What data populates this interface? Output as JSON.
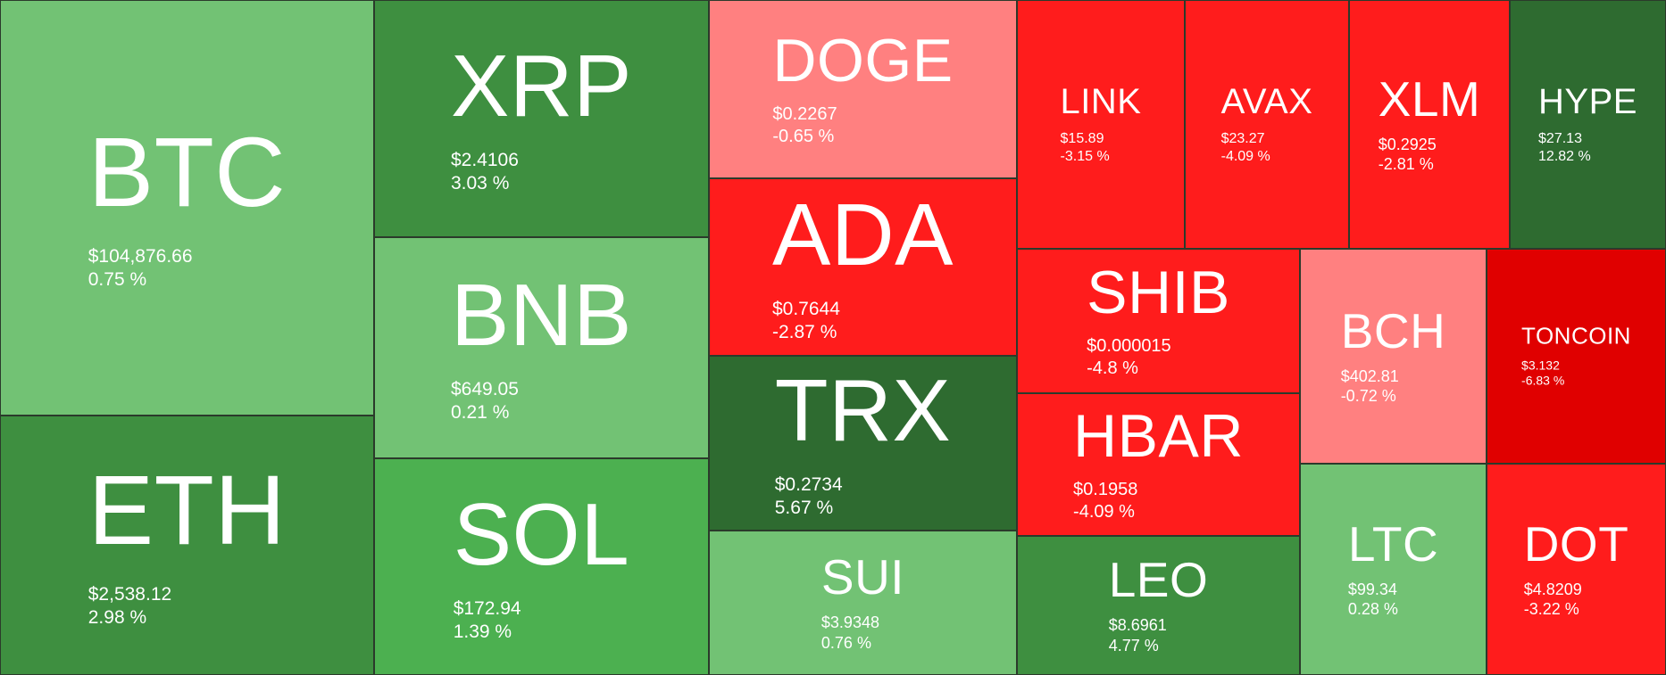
{
  "heatmap": {
    "tiles": [
      {
        "symbol": "BTC",
        "price": "$104,876.66",
        "change": "0.75 %",
        "color": "#72c274"
      },
      {
        "symbol": "ETH",
        "price": "$2,538.12",
        "change": "2.98 %",
        "color": "#3e8f40"
      },
      {
        "symbol": "XRP",
        "price": "$2.4106",
        "change": "3.03 %",
        "color": "#3e8f40"
      },
      {
        "symbol": "BNB",
        "price": "$649.05",
        "change": "0.21 %",
        "color": "#72c274"
      },
      {
        "symbol": "SOL",
        "price": "$172.94",
        "change": "1.39 %",
        "color": "#4cb050"
      },
      {
        "symbol": "DOGE",
        "price": "$0.2267",
        "change": "-0.65 %",
        "color": "#ff8080"
      },
      {
        "symbol": "ADA",
        "price": "$0.7644",
        "change": "-2.87 %",
        "color": "#ff1c1c"
      },
      {
        "symbol": "TRX",
        "price": "$0.2734",
        "change": "5.67 %",
        "color": "#2e6b30"
      },
      {
        "symbol": "SUI",
        "price": "$3.9348",
        "change": "0.76 %",
        "color": "#72c274"
      },
      {
        "symbol": "LINK",
        "price": "$15.89",
        "change": "-3.15 %",
        "color": "#ff1c1c"
      },
      {
        "symbol": "AVAX",
        "price": "$23.27",
        "change": "-4.09 %",
        "color": "#ff1c1c"
      },
      {
        "symbol": "XLM",
        "price": "$0.2925",
        "change": "-2.81 %",
        "color": "#ff1c1c"
      },
      {
        "symbol": "HYPE",
        "price": "$27.13",
        "change": "12.82 %",
        "color": "#2e6b30"
      },
      {
        "symbol": "SHIB",
        "price": "$0.000015",
        "change": "-4.8 %",
        "color": "#ff1c1c"
      },
      {
        "symbol": "HBAR",
        "price": "$0.1958",
        "change": "-4.09 %",
        "color": "#ff1c1c"
      },
      {
        "symbol": "LEO",
        "price": "$8.6961",
        "change": "4.77 %",
        "color": "#3e8f40"
      },
      {
        "symbol": "BCH",
        "price": "$402.81",
        "change": "-0.72 %",
        "color": "#ff8080"
      },
      {
        "symbol": "TONCOIN",
        "price": "$3.132",
        "change": "-6.83 %",
        "color": "#e00000"
      },
      {
        "symbol": "LTC",
        "price": "$99.34",
        "change": "0.28 %",
        "color": "#72c274"
      },
      {
        "symbol": "DOT",
        "price": "$4.8209",
        "change": "-3.22 %",
        "color": "#ff1c1c"
      }
    ]
  }
}
